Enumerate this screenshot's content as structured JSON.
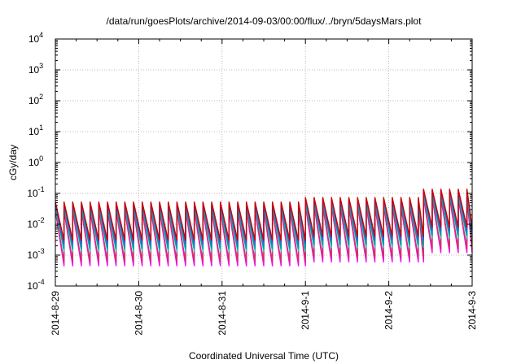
{
  "chart_data": {
    "type": "line",
    "title": "/data/run/goesPlots/archive/2014-09-03/00:00/flux/../bryn/5daysMars.plot",
    "xlabel": "Coordinated Universal Time (UTC)",
    "ylabel": "cGy/day",
    "yscale": "log",
    "ylim": [
      0.0001,
      10000
    ],
    "xlim": [
      "2014-08-29 00:00",
      "2014-09-03 00:00"
    ],
    "grid": true,
    "x_tick_labels": [
      "2014-8-29",
      "2014-8-30",
      "2014-8-31",
      "2014-9-1",
      "2014-9-2",
      "2014-9-3"
    ],
    "y_ticks": [
      {
        "base": "10",
        "exp": "-4"
      },
      {
        "base": "10",
        "exp": "-3"
      },
      {
        "base": "10",
        "exp": "-2"
      },
      {
        "base": "10",
        "exp": "-1"
      },
      {
        "base": "10",
        "exp": "0"
      },
      {
        "base": "10",
        "exp": "1"
      },
      {
        "base": "10",
        "exp": "2"
      },
      {
        "base": "10",
        "exp": "3"
      },
      {
        "base": "10",
        "exp": "4"
      }
    ],
    "cycle_hours": 2.5,
    "segments": [
      {
        "x_start": "2014-08-29 00:00",
        "x_end": "2014-09-01 00:00",
        "peak": 0.05,
        "trough": 0.003
      },
      {
        "x_start": "2014-09-01 00:00",
        "x_end": "2014-09-02 10:00",
        "peak": 0.07,
        "trough": 0.004
      },
      {
        "x_start": "2014-09-02 10:00",
        "x_end": "2014-09-03 00:00",
        "peak": 0.13,
        "trough": 0.008
      }
    ],
    "series": [
      {
        "color": "#ff00ff",
        "peak_factor": 0.55,
        "trough_factor": 0.15
      },
      {
        "color": "#cc3366",
        "peak_factor": 0.6,
        "trough_factor": 0.2
      },
      {
        "color": "#00cccc",
        "peak_factor": 0.75,
        "trough_factor": 0.45
      },
      {
        "color": "#009999",
        "peak_factor": 0.8,
        "trough_factor": 0.55
      },
      {
        "color": "#3355ff",
        "peak_factor": 0.95,
        "trough_factor": 0.8
      },
      {
        "color": "#cc0000",
        "peak_factor": 1.05,
        "trough_factor": 1.0
      }
    ]
  }
}
